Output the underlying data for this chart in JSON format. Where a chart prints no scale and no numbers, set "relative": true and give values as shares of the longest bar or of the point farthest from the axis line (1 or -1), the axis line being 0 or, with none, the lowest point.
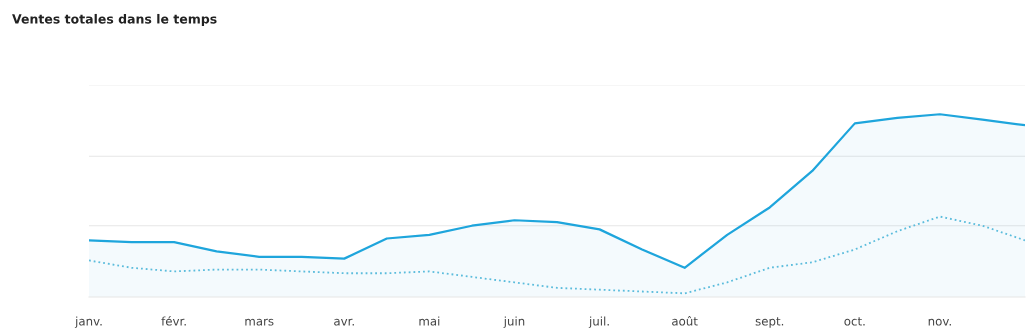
{
  "chart_data": {
    "type": "line",
    "title": "Ventes totales dans le temps",
    "categories": [
      "janv.",
      null,
      "févr.",
      null,
      "mars",
      null,
      "avr.",
      null,
      "mai",
      null,
      "juin",
      null,
      "juil.",
      null,
      "août",
      null,
      "sept.",
      null,
      "oct.",
      null,
      "nov.",
      null,
      null
    ],
    "relative": true,
    "marker": "none",
    "ref_lines": [
      {
        "axis": "y",
        "value": 0.39,
        "color": "#e6e6e6"
      },
      {
        "axis": "y",
        "value": 0.77,
        "color": "#e6e6e6"
      },
      {
        "axis": "y",
        "value": 1.16,
        "color": "#eeeeee"
      }
    ],
    "series": [
      {
        "type": "area",
        "color": "#1ea5dc",
        "line_style": "solid",
        "values": [
          0.31,
          0.3,
          0.3,
          0.25,
          0.22,
          0.22,
          0.21,
          0.32,
          0.34,
          0.39,
          0.42,
          0.41,
          0.37,
          0.26,
          0.16,
          0.34,
          0.49,
          0.69,
          0.95,
          0.98,
          1,
          0.97,
          0.94
        ]
      },
      {
        "color": "#5bbcdc",
        "line_style": "dotted",
        "values": [
          0.2,
          0.16,
          0.14,
          0.15,
          0.15,
          0.14,
          0.13,
          0.13,
          0.14,
          0.11,
          0.08,
          0.05,
          0.04,
          0.03,
          0.02,
          0.08,
          0.16,
          0.19,
          0.26,
          0.36,
          0.44,
          0.39,
          0.31
        ]
      }
    ]
  }
}
